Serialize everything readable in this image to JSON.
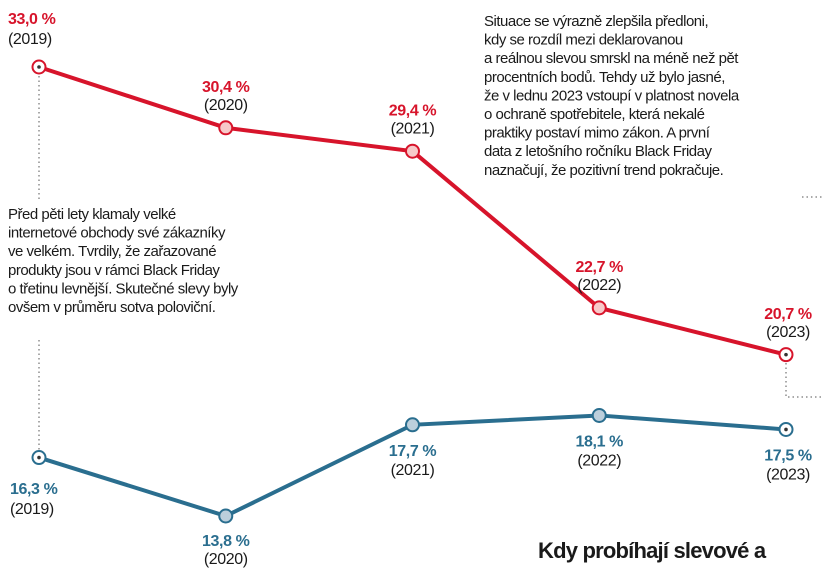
{
  "chart_data": {
    "type": "line",
    "categories": [
      "(2019)",
      "(2020)",
      "(2021)",
      "(2022)",
      "(2023)"
    ],
    "series": [
      {
        "name": null,
        "color": "#d7142b",
        "values": [
          33.0,
          30.4,
          29.4,
          22.7,
          20.7
        ],
        "value_labels": [
          "33,0 %",
          "30,4 %",
          "29,4 %",
          "22,7 %",
          "20,7 %"
        ]
      },
      {
        "name": null,
        "color": "#2a6e8f",
        "values": [
          16.3,
          13.8,
          17.7,
          18.1,
          17.5
        ],
        "value_labels": [
          "16,3 %",
          "13,8 %",
          "17,7 %",
          "18,1 %",
          "17,5 %"
        ]
      }
    ],
    "annotations": [
      {
        "lines": [
          "Situace se výrazně zlepšila předloni,",
          "kdy se rozdíl mezi deklarovanou",
          "a reálnou slevou smrskl na méně než pět",
          "procentních bodů. Tehdy už bylo jasné,",
          "že v lednu 2023 vstoupí v platnost novela",
          "o ochraně spotřebitele, která nekalé",
          "praktiky postaví mimo zákon. A první",
          "data z letošního ročníku Black Friday",
          "naznačují, že pozitivní trend pokračuje."
        ]
      },
      {
        "lines": [
          "Před pěti lety klamaly velké",
          "internetové obchody své zákazníky",
          "ve velkém. Tvrdily, že zařazované",
          "produkty jsou v rámci Black Friday",
          "o třetinu levnější. Skutečné slevy byly",
          "ovšem v průměru sotva poloviční."
        ]
      }
    ],
    "heading": "Kdy probíhají slevové a"
  }
}
